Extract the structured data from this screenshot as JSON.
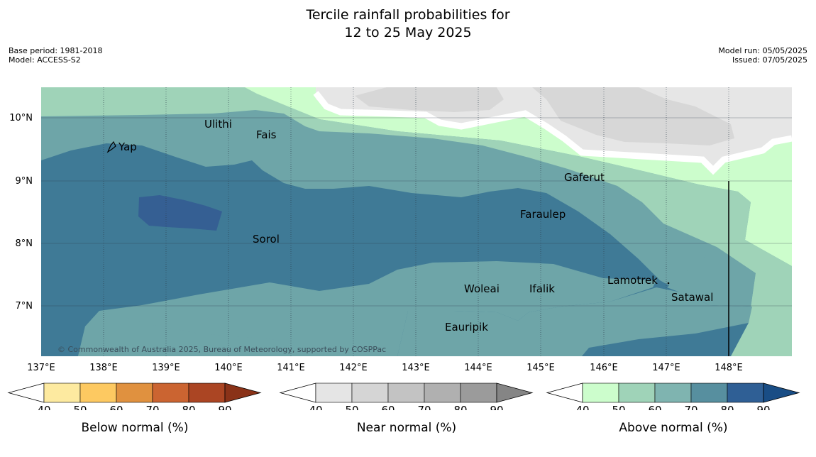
{
  "header": {
    "title_line1": "Tercile rainfall probabilities for",
    "title_line2": "12 to 25 May 2025",
    "base_period": "Base period: 1981-2018",
    "model": "Model: ACCESS-S2",
    "model_run": "Model run: 05/05/2025",
    "issued": "Issued: 07/05/2025"
  },
  "map": {
    "lat_labels": [
      "10°N",
      "9°N",
      "8°N",
      "7°N"
    ],
    "lon_labels": [
      "137°E",
      "138°E",
      "139°E",
      "140°E",
      "141°E",
      "142°E",
      "143°E",
      "144°E",
      "145°E",
      "146°E",
      "147°E",
      "148°E"
    ],
    "places": [
      "Ulithi",
      "Yap",
      "Fais",
      "Gaferut",
      "Faraulep",
      "Sorol",
      "Woleai",
      "Ifalik",
      "Lamotrek",
      "Satawal",
      "Eauripik"
    ],
    "copyright": "© Commonwealth of Australia 2025, Bureau of Meteorology, supported by COSPPac"
  },
  "legends": [
    {
      "name": "below",
      "title": "Below normal (%)",
      "ticks": [
        "40",
        "50",
        "60",
        "70",
        "80",
        "90"
      ],
      "colors": [
        "#fdeaa0",
        "#fdc961",
        "#e0913f",
        "#cb6431",
        "#ab4523",
        "#8a3218"
      ]
    },
    {
      "name": "near",
      "title": "Near normal (%)",
      "ticks": [
        "40",
        "50",
        "60",
        "70",
        "80",
        "90"
      ],
      "colors": [
        "#e5e5e5",
        "#d5d5d5",
        "#c3c3c3",
        "#b0b0b0",
        "#9b9b9b",
        "#858585"
      ]
    },
    {
      "name": "above",
      "title": "Above normal (%)",
      "ticks": [
        "40",
        "50",
        "60",
        "70",
        "80",
        "90"
      ],
      "colors": [
        "#ccfdcc",
        "#9fd3b8",
        "#7fb4b0",
        "#578f9f",
        "#2f5f95",
        "#194d85"
      ]
    }
  ],
  "colors": {
    "above_50": "#9fd3b8",
    "above_60": "#6ea5a8",
    "above_70": "#3f7a96",
    "above_80": "#355f93",
    "above_40": "#ccfdcc",
    "near_40": "#e6e6e6",
    "near_50": "#d7d7d7"
  }
}
